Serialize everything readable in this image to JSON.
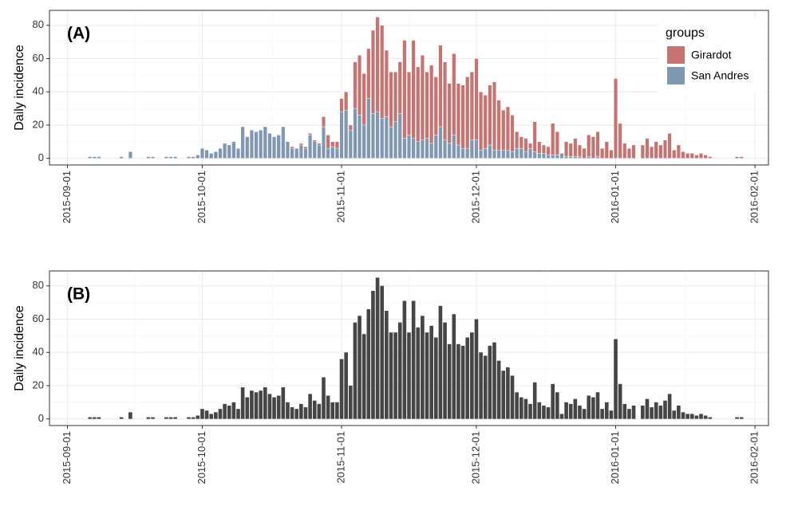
{
  "chart_data": [
    {
      "type": "bar",
      "stacked": true,
      "annotation": "(A)",
      "y_label": "Daily incidence",
      "legend_title": "groups",
      "legend_position": "top right",
      "grid": true,
      "x": [
        "2015-09-01",
        "2015-09-02",
        "2015-09-03",
        "2015-09-04",
        "2015-09-05",
        "2015-09-06",
        "2015-09-07",
        "2015-09-08",
        "2015-09-09",
        "2015-09-10",
        "2015-09-11",
        "2015-09-12",
        "2015-09-13",
        "2015-09-14",
        "2015-09-15",
        "2015-09-16",
        "2015-09-17",
        "2015-09-18",
        "2015-09-19",
        "2015-09-20",
        "2015-09-21",
        "2015-09-22",
        "2015-09-23",
        "2015-09-24",
        "2015-09-25",
        "2015-09-26",
        "2015-09-27",
        "2015-09-28",
        "2015-09-29",
        "2015-09-30",
        "2015-10-01",
        "2015-10-02",
        "2015-10-03",
        "2015-10-04",
        "2015-10-05",
        "2015-10-06",
        "2015-10-07",
        "2015-10-08",
        "2015-10-09",
        "2015-10-10",
        "2015-10-11",
        "2015-10-12",
        "2015-10-13",
        "2015-10-14",
        "2015-10-15",
        "2015-10-16",
        "2015-10-17",
        "2015-10-18",
        "2015-10-19",
        "2015-10-20",
        "2015-10-21",
        "2015-10-22",
        "2015-10-23",
        "2015-10-24",
        "2015-10-25",
        "2015-10-26",
        "2015-10-27",
        "2015-10-28",
        "2015-10-29",
        "2015-10-30",
        "2015-10-31",
        "2015-11-01",
        "2015-11-02",
        "2015-11-03",
        "2015-11-04",
        "2015-11-05",
        "2015-11-06",
        "2015-11-07",
        "2015-11-08",
        "2015-11-09",
        "2015-11-10",
        "2015-11-11",
        "2015-11-12",
        "2015-11-13",
        "2015-11-14",
        "2015-11-15",
        "2015-11-16",
        "2015-11-17",
        "2015-11-18",
        "2015-11-19",
        "2015-11-20",
        "2015-11-21",
        "2015-11-22",
        "2015-11-23",
        "2015-11-24",
        "2015-11-25",
        "2015-11-26",
        "2015-11-27",
        "2015-11-28",
        "2015-11-29",
        "2015-11-30",
        "2015-12-01",
        "2015-12-02",
        "2015-12-03",
        "2015-12-04",
        "2015-12-05",
        "2015-12-06",
        "2015-12-07",
        "2015-12-08",
        "2015-12-09",
        "2015-12-10",
        "2015-12-11",
        "2015-12-12",
        "2015-12-13",
        "2015-12-14",
        "2015-12-15",
        "2015-12-16",
        "2015-12-17",
        "2015-12-18",
        "2015-12-19",
        "2015-12-20",
        "2015-12-21",
        "2015-12-22",
        "2015-12-23",
        "2015-12-24",
        "2015-12-25",
        "2015-12-26",
        "2015-12-27",
        "2015-12-28",
        "2015-12-29",
        "2015-12-30",
        "2015-12-31",
        "2016-01-01",
        "2016-01-02",
        "2016-01-03",
        "2016-01-04",
        "2016-01-05",
        "2016-01-06",
        "2016-01-07",
        "2016-01-08",
        "2016-01-09",
        "2016-01-10",
        "2016-01-11",
        "2016-01-12",
        "2016-01-13",
        "2016-01-14",
        "2016-01-15",
        "2016-01-16",
        "2016-01-17",
        "2016-01-18",
        "2016-01-19",
        "2016-01-20",
        "2016-01-21",
        "2016-01-22",
        "2016-01-23",
        "2016-01-24",
        "2016-01-25",
        "2016-01-26",
        "2016-01-27",
        "2016-01-28",
        "2016-01-29",
        "2016-01-30",
        "2016-01-31"
      ],
      "series": [
        {
          "name": "Girardot",
          "color": "#c57472",
          "values": [
            0,
            0,
            0,
            0,
            0,
            0,
            0,
            0,
            0,
            0,
            0,
            0,
            0,
            0,
            0,
            0,
            0,
            0,
            0,
            0,
            0,
            0,
            0,
            0,
            0,
            0,
            0,
            0,
            0,
            0,
            0,
            0,
            0,
            0,
            0,
            0,
            0,
            0,
            0,
            0,
            0,
            0,
            0,
            0,
            0,
            0,
            0,
            0,
            0,
            0,
            1,
            0,
            1,
            1,
            1,
            1,
            1,
            6,
            8,
            3,
            4,
            8,
            11,
            3,
            28,
            36,
            31,
            30,
            50,
            57,
            56,
            40,
            33,
            30,
            31,
            59,
            38,
            59,
            45,
            51,
            40,
            47,
            35,
            49,
            47,
            36,
            49,
            37,
            38,
            43,
            41,
            49,
            35,
            32,
            36,
            41,
            30,
            24,
            26,
            22,
            10,
            7,
            8,
            3,
            18,
            7,
            5,
            5,
            19,
            14,
            0,
            9,
            8,
            11,
            7,
            6,
            13,
            13,
            15,
            6,
            10,
            5,
            48,
            21,
            9,
            6,
            8,
            0,
            8,
            12,
            7,
            10,
            8,
            11,
            15,
            5,
            8,
            4,
            3,
            3,
            2,
            3,
            2,
            1,
            0,
            0,
            0,
            0,
            0,
            1,
            1,
            0,
            0
          ]
        },
        {
          "name": "San Andres",
          "color": "#7f97b1",
          "values": [
            0,
            0,
            0,
            0,
            0,
            1,
            1,
            1,
            0,
            0,
            0,
            0,
            1,
            0,
            4,
            0,
            0,
            0,
            1,
            1,
            0,
            0,
            1,
            1,
            1,
            0,
            0,
            1,
            1,
            2,
            6,
            5,
            3,
            4,
            6,
            9,
            8,
            10,
            6,
            19,
            13,
            17,
            16,
            17,
            19,
            15,
            13,
            14,
            19,
            10,
            6,
            6,
            8,
            6,
            14,
            10,
            8,
            19,
            6,
            7,
            6,
            28,
            29,
            17,
            30,
            26,
            20,
            36,
            27,
            28,
            24,
            25,
            19,
            22,
            27,
            12,
            14,
            12,
            10,
            11,
            12,
            9,
            14,
            19,
            11,
            9,
            14,
            8,
            6,
            6,
            11,
            11,
            5,
            6,
            8,
            5,
            5,
            5,
            5,
            4,
            6,
            6,
            4,
            6,
            4,
            3,
            3,
            2,
            2,
            2,
            3,
            1,
            1,
            1,
            1,
            0,
            1,
            0,
            1,
            0,
            0,
            0,
            0,
            0,
            0,
            0,
            0,
            0,
            0,
            0,
            0,
            0,
            0,
            0,
            0,
            0,
            0,
            0,
            0,
            0,
            0,
            0,
            0,
            0,
            0,
            0,
            0,
            0,
            0,
            0,
            0,
            0,
            0
          ]
        }
      ],
      "xlim": [
        "2015-08-28",
        "2016-02-04"
      ],
      "xticks": [
        "2015-09-01",
        "2015-10-01",
        "2015-11-01",
        "2015-12-01",
        "2016-01-01",
        "2016-02-01"
      ],
      "ylim": [
        -4,
        89
      ],
      "yticks": [
        0,
        20,
        40,
        60,
        80
      ]
    },
    {
      "type": "bar",
      "annotation": "(B)",
      "y_label": "Daily incidence",
      "color": "#454545",
      "grid": true,
      "x": [
        "2015-09-01",
        "2015-09-02",
        "2015-09-03",
        "2015-09-04",
        "2015-09-05",
        "2015-09-06",
        "2015-09-07",
        "2015-09-08",
        "2015-09-09",
        "2015-09-10",
        "2015-09-11",
        "2015-09-12",
        "2015-09-13",
        "2015-09-14",
        "2015-09-15",
        "2015-09-16",
        "2015-09-17",
        "2015-09-18",
        "2015-09-19",
        "2015-09-20",
        "2015-09-21",
        "2015-09-22",
        "2015-09-23",
        "2015-09-24",
        "2015-09-25",
        "2015-09-26",
        "2015-09-27",
        "2015-09-28",
        "2015-09-29",
        "2015-09-30",
        "2015-10-01",
        "2015-10-02",
        "2015-10-03",
        "2015-10-04",
        "2015-10-05",
        "2015-10-06",
        "2015-10-07",
        "2015-10-08",
        "2015-10-09",
        "2015-10-10",
        "2015-10-11",
        "2015-10-12",
        "2015-10-13",
        "2015-10-14",
        "2015-10-15",
        "2015-10-16",
        "2015-10-17",
        "2015-10-18",
        "2015-10-19",
        "2015-10-20",
        "2015-10-21",
        "2015-10-22",
        "2015-10-23",
        "2015-10-24",
        "2015-10-25",
        "2015-10-26",
        "2015-10-27",
        "2015-10-28",
        "2015-10-29",
        "2015-10-30",
        "2015-10-31",
        "2015-11-01",
        "2015-11-02",
        "2015-11-03",
        "2015-11-04",
        "2015-11-05",
        "2015-11-06",
        "2015-11-07",
        "2015-11-08",
        "2015-11-09",
        "2015-11-10",
        "2015-11-11",
        "2015-11-12",
        "2015-11-13",
        "2015-11-14",
        "2015-11-15",
        "2015-11-16",
        "2015-11-17",
        "2015-11-18",
        "2015-11-19",
        "2015-11-20",
        "2015-11-21",
        "2015-11-22",
        "2015-11-23",
        "2015-11-24",
        "2015-11-25",
        "2015-11-26",
        "2015-11-27",
        "2015-11-28",
        "2015-11-29",
        "2015-11-30",
        "2015-12-01",
        "2015-12-02",
        "2015-12-03",
        "2015-12-04",
        "2015-12-05",
        "2015-12-06",
        "2015-12-07",
        "2015-12-08",
        "2015-12-09",
        "2015-12-10",
        "2015-12-11",
        "2015-12-12",
        "2015-12-13",
        "2015-12-14",
        "2015-12-15",
        "2015-12-16",
        "2015-12-17",
        "2015-12-18",
        "2015-12-19",
        "2015-12-20",
        "2015-12-21",
        "2015-12-22",
        "2015-12-23",
        "2015-12-24",
        "2015-12-25",
        "2015-12-26",
        "2015-12-27",
        "2015-12-28",
        "2015-12-29",
        "2015-12-30",
        "2015-12-31",
        "2016-01-01",
        "2016-01-02",
        "2016-01-03",
        "2016-01-04",
        "2016-01-05",
        "2016-01-06",
        "2016-01-07",
        "2016-01-08",
        "2016-01-09",
        "2016-01-10",
        "2016-01-11",
        "2016-01-12",
        "2016-01-13",
        "2016-01-14",
        "2016-01-15",
        "2016-01-16",
        "2016-01-17",
        "2016-01-18",
        "2016-01-19",
        "2016-01-20",
        "2016-01-21",
        "2016-01-22",
        "2016-01-23",
        "2016-01-24",
        "2016-01-25",
        "2016-01-26",
        "2016-01-27",
        "2016-01-28",
        "2016-01-29",
        "2016-01-30",
        "2016-01-31"
      ],
      "values": [
        0,
        0,
        0,
        0,
        0,
        1,
        1,
        1,
        0,
        0,
        0,
        0,
        1,
        0,
        4,
        0,
        0,
        0,
        1,
        1,
        0,
        0,
        1,
        1,
        1,
        0,
        0,
        1,
        1,
        2,
        6,
        5,
        3,
        4,
        6,
        9,
        8,
        10,
        6,
        19,
        13,
        17,
        16,
        17,
        19,
        15,
        13,
        14,
        19,
        10,
        7,
        6,
        9,
        7,
        15,
        11,
        9,
        25,
        14,
        10,
        10,
        36,
        40,
        20,
        58,
        62,
        51,
        66,
        77,
        85,
        80,
        65,
        52,
        52,
        58,
        71,
        52,
        71,
        55,
        62,
        52,
        56,
        49,
        68,
        58,
        45,
        63,
        45,
        44,
        49,
        52,
        60,
        40,
        38,
        44,
        46,
        35,
        29,
        31,
        26,
        16,
        13,
        12,
        9,
        22,
        10,
        8,
        7,
        21,
        16,
        3,
        10,
        9,
        12,
        8,
        6,
        14,
        13,
        16,
        6,
        10,
        5,
        48,
        21,
        9,
        6,
        8,
        0,
        8,
        12,
        7,
        10,
        8,
        11,
        15,
        5,
        8,
        4,
        3,
        3,
        2,
        3,
        2,
        1,
        0,
        0,
        0,
        0,
        0,
        1,
        1,
        0,
        0
      ],
      "xlim": [
        "2015-08-28",
        "2016-02-04"
      ],
      "xticks": [
        "2015-09-01",
        "2015-10-01",
        "2015-11-01",
        "2015-12-01",
        "2016-01-01",
        "2016-02-01"
      ],
      "ylim": [
        -4,
        89
      ],
      "yticks": [
        0,
        20,
        40,
        60,
        80
      ]
    }
  ]
}
